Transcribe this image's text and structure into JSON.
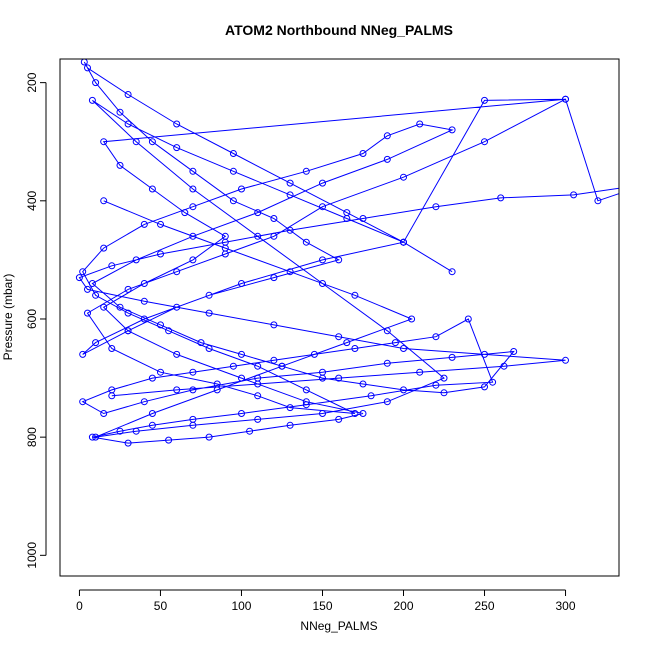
{
  "chart_data": {
    "type": "line",
    "title": "ATOM2 Northbound NNeg_PALMS",
    "xlabel": "NNeg_PALMS",
    "ylabel": "Pressure (mbar)",
    "xlim": [
      -12,
      333
    ],
    "ylim": [
      1035,
      160
    ],
    "y_reversed": true,
    "x_ticks": [
      0,
      50,
      100,
      150,
      200,
      250,
      300
    ],
    "y_ticks": [
      200,
      400,
      600,
      800,
      1000
    ],
    "grid": false,
    "legend": "none",
    "marker": "open-circle",
    "series": [
      {
        "color": "#0000ff",
        "x": [
          3,
          10,
          25,
          45,
          70,
          95,
          120,
          140,
          160,
          120,
          80,
          40,
          10,
          2,
          30,
          60,
          100,
          150,
          200,
          250,
          300,
          250,
          200,
          150,
          120,
          90,
          60,
          30,
          5,
          20,
          50,
          85,
          110,
          130,
          170,
          140,
          110,
          80,
          55,
          30,
          10,
          2,
          15,
          40,
          70,
          100,
          140,
          175,
          190,
          210,
          230,
          190,
          150,
          110,
          70,
          35,
          8,
          25,
          50,
          75,
          100,
          125,
          150,
          175,
          200,
          225,
          250,
          268,
          230,
          190,
          150,
          110,
          70,
          40,
          15,
          2,
          20,
          45,
          70,
          95,
          120,
          145,
          170,
          195,
          220,
          240,
          255,
          220,
          180,
          140,
          100,
          70,
          45,
          25,
          8,
          30,
          55,
          80,
          105,
          130,
          160,
          175,
          140,
          100,
          60,
          30,
          15,
          40,
          70,
          90,
          65,
          45,
          25,
          15,
          300,
          320,
          350,
          305,
          260,
          220,
          175,
          130,
          90,
          50,
          20,
          0,
          5,
          40,
          80,
          120,
          160,
          200,
          250,
          300,
          262,
          210,
          160,
          110,
          60,
          20
        ],
        "y": [
          165,
          200,
          250,
          300,
          350,
          400,
          430,
          470,
          500,
          530,
          560,
          600,
          640,
          660,
          620,
          580,
          540,
          500,
          470,
          230,
          228,
          300,
          360,
          410,
          460,
          490,
          520,
          550,
          590,
          650,
          690,
          710,
          730,
          750,
          760,
          720,
          680,
          650,
          620,
          590,
          560,
          520,
          480,
          440,
          410,
          380,
          350,
          320,
          290,
          270,
          280,
          330,
          370,
          420,
          460,
          500,
          540,
          580,
          610,
          640,
          660,
          680,
          700,
          710,
          720,
          725,
          715,
          655,
          665,
          675,
          690,
          700,
          720,
          740,
          760,
          740,
          720,
          700,
          690,
          680,
          670,
          660,
          650,
          640,
          630,
          600,
          707,
          712,
          730,
          745,
          760,
          770,
          780,
          790,
          800,
          810,
          805,
          800,
          790,
          780,
          770,
          760,
          740,
          700,
          660,
          620,
          580,
          540,
          500,
          460,
          420,
          380,
          340,
          300,
          228,
          400,
          372,
          390,
          395,
          410,
          430,
          450,
          470,
          490,
          510,
          530,
          550,
          570,
          590,
          610,
          630,
          650,
          660,
          670,
          680,
          690,
          700,
          710,
          720,
          730
        ]
      },
      {
        "color": "#0000ff",
        "x": [
          5,
          30,
          60,
          95,
          130,
          165,
          200,
          230,
          200,
          165,
          130,
          95,
          60,
          30,
          8,
          35,
          70,
          110,
          150,
          190,
          225,
          190,
          150,
          110,
          70,
          35,
          10,
          45,
          85,
          125,
          165,
          205,
          170,
          130,
          90,
          50,
          15
        ],
        "y": [
          175,
          220,
          270,
          320,
          370,
          420,
          470,
          520,
          470,
          430,
          390,
          350,
          310,
          270,
          230,
          300,
          380,
          460,
          540,
          620,
          700,
          740,
          760,
          770,
          780,
          790,
          800,
          760,
          720,
          680,
          640,
          600,
          560,
          520,
          480,
          440,
          400
        ]
      }
    ]
  }
}
